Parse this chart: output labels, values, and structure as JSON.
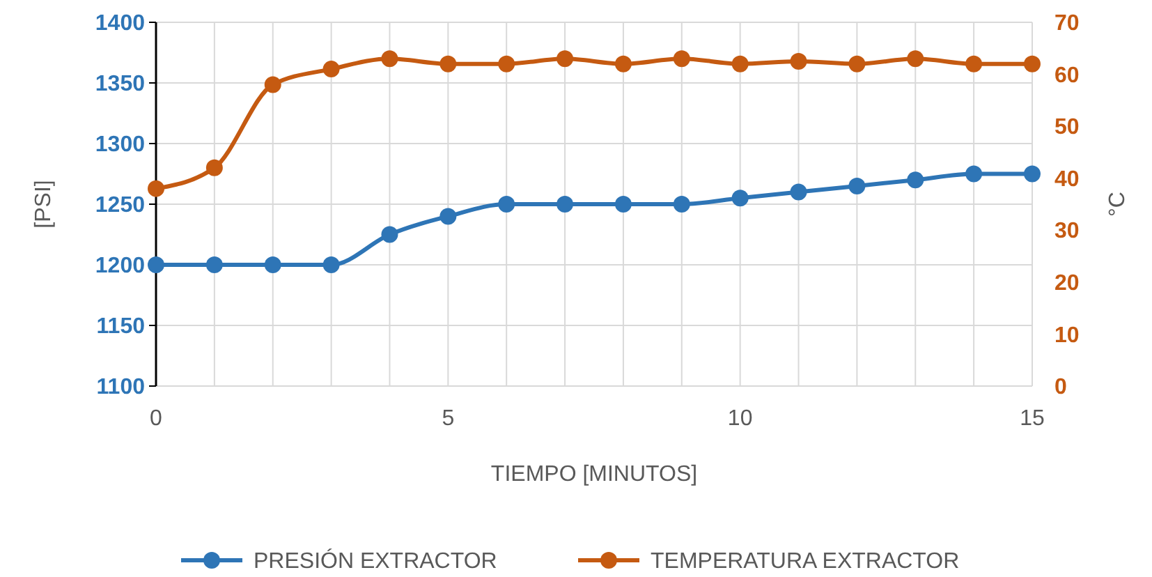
{
  "chart_data": {
    "type": "line",
    "xlabel": "TIEMPO [MINUTOS]",
    "ylabel": "[PSI]",
    "y2label": "°C",
    "x": [
      0,
      1,
      2,
      3,
      4,
      5,
      6,
      7,
      8,
      9,
      10,
      11,
      12,
      13,
      14,
      15
    ],
    "series": [
      {
        "name": "PRESIÓN EXTRACTOR",
        "color": "#2e75b6",
        "values": [
          1200,
          1200,
          1200,
          1200,
          1225,
          1240,
          1250,
          1250,
          1250,
          1250,
          1255,
          1260,
          1265,
          1270,
          1275,
          1275
        ]
      },
      {
        "name": "TEMPERATURA EXTRACTOR",
        "color": "#c55a11",
        "axis": "y2",
        "values": [
          38,
          42,
          58,
          61,
          63,
          62,
          62,
          63,
          62,
          63,
          62,
          62.5,
          62,
          63,
          62,
          62
        ]
      }
    ],
    "xlim": [
      0,
      15
    ],
    "xticks": [
      0,
      {
        "value": 1,
        "label": null
      },
      {
        "value": 2,
        "label": null
      },
      {
        "value": 3,
        "label": null
      },
      {
        "value": 4,
        "label": null
      },
      5,
      {
        "value": 6,
        "label": null
      },
      {
        "value": 7,
        "label": null
      },
      {
        "value": 8,
        "label": null
      },
      {
        "value": 9,
        "label": null
      },
      10,
      {
        "value": 11,
        "label": null
      },
      {
        "value": 12,
        "label": null
      },
      {
        "value": 13,
        "label": null
      },
      {
        "value": 14,
        "label": null
      },
      15
    ],
    "ylim": [
      1100,
      1400
    ],
    "yticks": [
      1100,
      1150,
      1200,
      1250,
      1300,
      1350,
      1400
    ],
    "y2lim": [
      0,
      70
    ],
    "y2ticks": [
      0,
      10,
      20,
      30,
      40,
      50,
      60,
      70
    ],
    "grid": true,
    "legend": "bottom",
    "marker": "circle",
    "line_style": "solid"
  }
}
